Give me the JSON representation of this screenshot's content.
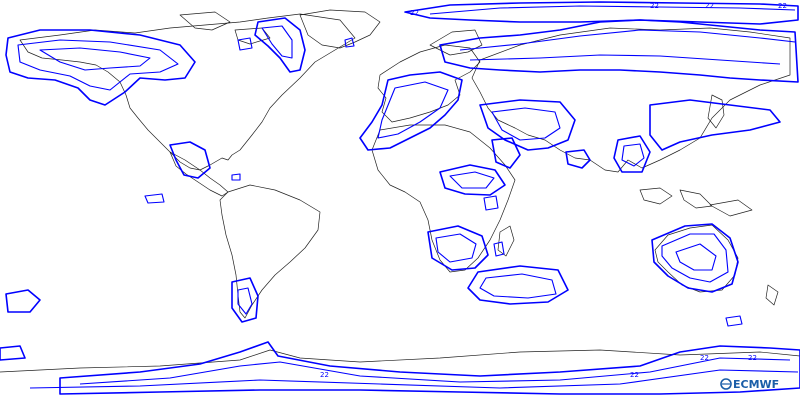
{
  "map": {
    "projection": "equirectangular",
    "background_color": "#ffffff",
    "coastline_color": "#222222",
    "contour_color": "#0000ff",
    "contour_label_values": [
      "22",
      "22",
      "22",
      "22",
      "22",
      "22",
      "22",
      "22"
    ]
  },
  "logo": {
    "text": "ECMWF",
    "icon": "ecmwf-logo-icon",
    "color": "#1a5ea8"
  }
}
